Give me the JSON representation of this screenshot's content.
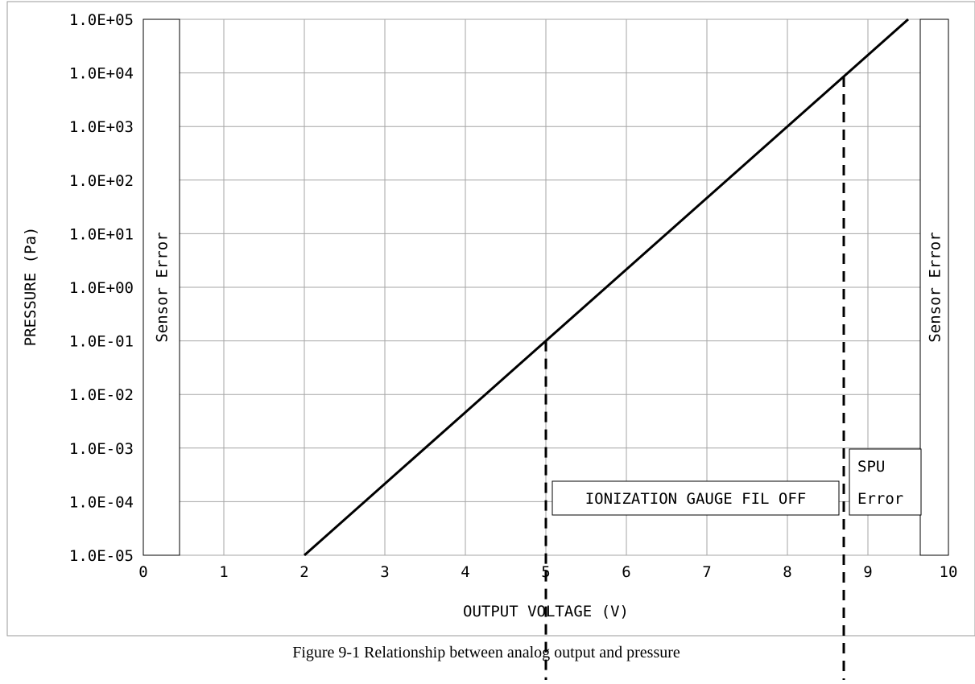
{
  "chart_data": {
    "type": "line",
    "xlabel": "OUTPUT VOLTAGE (V)",
    "ylabel": "PRESSURE (Pa)",
    "xlim": [
      0,
      10
    ],
    "ylim": [
      1e-05,
      100000
    ],
    "yscale": "log",
    "grid": true,
    "x_ticks": [
      "0",
      "1",
      "2",
      "3",
      "4",
      "5",
      "6",
      "7",
      "8",
      "9",
      "10"
    ],
    "y_ticks": [
      "1.0E-05",
      "1.0E-04",
      "1.0E-03",
      "1.0E-02",
      "1.0E-01",
      "1.0E+00",
      "1.0E+01",
      "1.0E+02",
      "1.0E+03",
      "1.0E+04",
      "1.0E+05"
    ],
    "series": [
      {
        "x": [
          2,
          9.5
        ],
        "y": [
          1e-05,
          100000
        ]
      }
    ],
    "reference_lines": [
      {
        "x": 5.0,
        "style": "dashed"
      },
      {
        "x": 8.7,
        "style": "dashed"
      }
    ],
    "regions": [
      {
        "label": "Sensor Error",
        "x_range": [
          0,
          0.45
        ]
      },
      {
        "label": "Sensor Error",
        "x_range": [
          9.65,
          10
        ]
      }
    ],
    "annotations": [
      {
        "text": "IONIZATION GAUGE FIL OFF"
      },
      {
        "text_lines": [
          "SPU",
          "Error"
        ]
      }
    ]
  },
  "caption": "Figure 9-1 Relationship between analog output and pressure"
}
